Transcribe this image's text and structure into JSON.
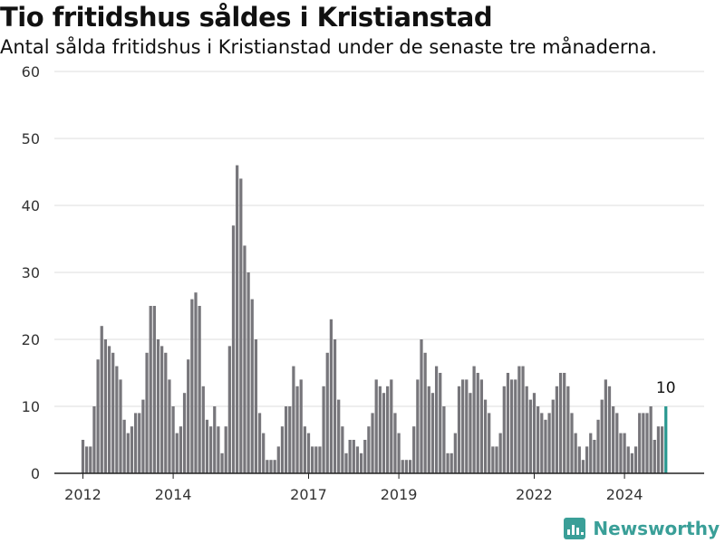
{
  "header": {
    "title": "Tio fritidshus såldes i Kristianstad",
    "subtitle": "Antal sålda fritidshus i Kristianstad under de senaste tre månaderna."
  },
  "brand": {
    "name": "Newsworthy",
    "icon": "newsworthy-logo-icon",
    "color": "#3a9f98"
  },
  "chart_data": {
    "type": "bar",
    "start": "2012-01",
    "frequency": "monthly",
    "values": [
      5,
      4,
      4,
      10,
      17,
      22,
      20,
      19,
      18,
      16,
      14,
      8,
      6,
      7,
      9,
      9,
      11,
      18,
      25,
      25,
      20,
      19,
      18,
      14,
      10,
      6,
      7,
      12,
      17,
      26,
      27,
      25,
      13,
      8,
      7,
      10,
      7,
      3,
      7,
      19,
      37,
      46,
      44,
      34,
      30,
      26,
      20,
      9,
      6,
      2,
      2,
      2,
      4,
      7,
      10,
      10,
      16,
      13,
      14,
      7,
      6,
      4,
      4,
      4,
      13,
      18,
      23,
      20,
      11,
      7,
      3,
      5,
      5,
      4,
      3,
      5,
      7,
      9,
      14,
      13,
      12,
      13,
      14,
      9,
      6,
      2,
      2,
      2,
      7,
      14,
      20,
      18,
      13,
      12,
      16,
      15,
      10,
      3,
      3,
      6,
      13,
      14,
      14,
      12,
      16,
      15,
      14,
      11,
      9,
      4,
      4,
      6,
      13,
      15,
      14,
      14,
      16,
      16,
      13,
      11,
      12,
      10,
      9,
      8,
      9,
      11,
      13,
      15,
      15,
      13,
      9,
      6,
      4,
      2,
      4,
      6,
      5,
      8,
      11,
      14,
      13,
      10,
      9,
      6,
      6,
      4,
      3,
      4,
      9,
      9,
      9,
      10,
      5,
      7,
      7,
      10
    ],
    "highlight": {
      "index": 155,
      "label": "10",
      "color": "#2a9890"
    },
    "bar_color": "#77767b",
    "ylim": [
      0,
      60
    ],
    "yticks": [
      0,
      10,
      20,
      30,
      40,
      50,
      60
    ],
    "xticks": [
      {
        "label": "2012",
        "index": 0
      },
      {
        "label": "2014",
        "index": 24
      },
      {
        "label": "2017",
        "index": 60
      },
      {
        "label": "2019",
        "index": 84
      },
      {
        "label": "2022",
        "index": 120
      },
      {
        "label": "2024",
        "index": 144
      }
    ],
    "grid": true,
    "xlabel": "",
    "ylabel": ""
  }
}
